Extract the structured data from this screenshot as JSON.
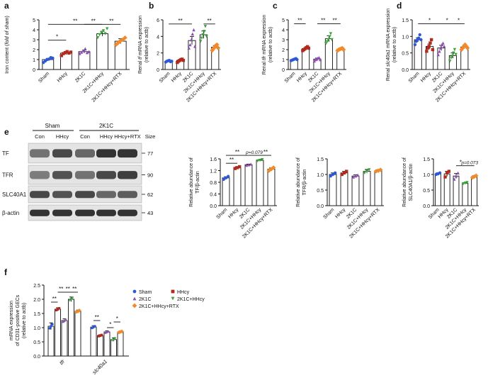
{
  "colors": {
    "Sham": "#2d59d6",
    "HHcy": "#b02a1e",
    "2K1C": "#8a4fb0",
    "2K1C+HHcy": "#3aa33a",
    "2K1C+HHcy+RTX": "#f08a2a"
  },
  "groups": [
    "Sham",
    "HHcy",
    "2K1C",
    "2K1C+HHcy",
    "2K1C+HHcy+RTX"
  ],
  "blot": {
    "panel_label": "e",
    "header_sham": "Sham",
    "header_2k1c": "2K1C",
    "lanes": [
      "Con",
      "HHcy",
      "Con",
      "HHcy",
      "HHcy+RTX"
    ],
    "size_label": "Size",
    "rows": [
      {
        "name": "TF",
        "size": "77"
      },
      {
        "name": "TFR",
        "size": "90"
      },
      {
        "name": "SLC40A1",
        "size": "62"
      },
      {
        "name": "β-actin",
        "size": "43"
      }
    ]
  },
  "legend": {
    "Sham": "Sham",
    "HHcy": "HHcy",
    "2K1C": "2K1C",
    "2K1C+HHcy": "2K1C+HHcy",
    "2K1C+HHcy+RTX": "2K1C+HHcy+RTX"
  },
  "chart_data": [
    {
      "panel": "a",
      "type": "bar",
      "ylabel_parts": [
        "Iron content (",
        "fold of sham",
        ")"
      ],
      "ylim": [
        0,
        5
      ],
      "yticks": [
        "0",
        "1",
        "2",
        "3",
        "4",
        "5"
      ],
      "categories": [
        "Sham",
        "HHcy",
        "2K1C",
        "2K1C+HHcy",
        "2K1C+HHcy+RTX"
      ],
      "values": [
        1.0,
        1.65,
        1.8,
        3.6,
        2.85
      ],
      "errors": [
        0.12,
        0.15,
        0.15,
        0.25,
        0.25
      ],
      "points": [
        [
          0.7,
          0.85,
          1.0,
          1.05,
          1.2,
          1.15
        ],
        [
          1.4,
          1.6,
          1.7,
          1.8,
          1.65,
          1.75
        ],
        [
          1.6,
          1.75,
          1.9,
          2.1,
          1.7,
          1.8
        ],
        [
          3.2,
          3.5,
          3.7,
          3.9,
          3.6,
          4.1
        ],
        [
          2.5,
          2.7,
          2.9,
          3.0,
          3.2
        ]
      ],
      "sig": [
        {
          "from": 0,
          "to": 1,
          "label": "*",
          "y": 2.95
        },
        {
          "from": 0,
          "to": 3,
          "label": "**",
          "y": 4.55
        },
        {
          "from": 2,
          "to": 3,
          "label": "**",
          "y": 4.55
        },
        {
          "from": 3,
          "to": 4,
          "label": "**",
          "y": 4.55
        }
      ]
    },
    {
      "panel": "b",
      "type": "bar",
      "ylabel_parts": [
        "Renal ",
        "tf",
        " mRNA expression"
      ],
      "ylabel2": "(relative to actb)",
      "ylim": [
        0,
        6
      ],
      "yticks": [
        "0",
        "2",
        "4",
        "6"
      ],
      "categories": [
        "Sham",
        "HHcy",
        "2K1C",
        "2K1C+HHcy",
        "2K1C+HHcy+RTX"
      ],
      "values": [
        1.0,
        1.1,
        3.5,
        4.2,
        2.7
      ],
      "errors": [
        0.1,
        0.12,
        0.5,
        0.45,
        0.2
      ],
      "points": [
        [
          0.9,
          1.0,
          1.05,
          1.1,
          0.95,
          1.0
        ],
        [
          0.85,
          1.0,
          1.1,
          1.2,
          1.25,
          1.1
        ],
        [
          2.6,
          3.0,
          3.6,
          4.3,
          4.8,
          2.8
        ],
        [
          3.4,
          3.8,
          4.2,
          4.6,
          5.2,
          4.0
        ],
        [
          2.3,
          2.5,
          2.7,
          2.9,
          3.0,
          2.6
        ]
      ],
      "sig": [
        {
          "from": 0,
          "to": 2,
          "label": "**",
          "y": 5.5
        },
        {
          "from": 3,
          "to": 4,
          "label": "**",
          "y": 5.5
        }
      ]
    },
    {
      "panel": "c",
      "type": "bar",
      "ylabel_parts": [
        "Renal ",
        "tfr",
        " mRNA expression"
      ],
      "ylabel2": "(relative to actb)",
      "ylim": [
        0,
        5
      ],
      "yticks": [
        "0",
        "1",
        "2",
        "3",
        "4",
        "5"
      ],
      "categories": [
        "Sham",
        "HHcy",
        "2K1C",
        "2K1C+HHcy",
        "2K1C+HHcy+RTX"
      ],
      "values": [
        1.0,
        2.1,
        1.05,
        3.1,
        2.05
      ],
      "errors": [
        0.08,
        0.12,
        0.1,
        0.3,
        0.1
      ],
      "points": [
        [
          0.9,
          0.95,
          1.0,
          1.05,
          1.1,
          1.0
        ],
        [
          1.9,
          2.0,
          2.1,
          2.2,
          2.3,
          2.15
        ],
        [
          0.85,
          1.0,
          1.05,
          1.15,
          1.2,
          1.0
        ],
        [
          2.6,
          2.8,
          3.0,
          3.3,
          3.6,
          3.0
        ],
        [
          1.9,
          2.0,
          2.05,
          2.1,
          2.15,
          2.0
        ]
      ],
      "sig": [
        {
          "from": 0,
          "to": 1,
          "label": "**",
          "y": 4.6
        },
        {
          "from": 2,
          "to": 3,
          "label": "**",
          "y": 4.6
        },
        {
          "from": 3,
          "to": 4,
          "label": "**",
          "y": 4.6
        }
      ]
    },
    {
      "panel": "d",
      "type": "bar",
      "ylabel_parts": [
        "Renal ",
        "slc40a1",
        " mRNA expression"
      ],
      "ylabel2": "(relative to actb)",
      "ylim": [
        0,
        1.5
      ],
      "yticks": [
        "0.0",
        "0.5",
        "1.0",
        "1.5"
      ],
      "categories": [
        "Sham",
        "HHcy",
        "2K1C",
        "2K1C+HHcy",
        "2K1C+HHcy+RTX"
      ],
      "values": [
        0.9,
        0.7,
        0.65,
        0.42,
        0.68
      ],
      "errors": [
        0.06,
        0.07,
        0.08,
        0.08,
        0.05
      ],
      "points": [
        [
          0.75,
          0.85,
          0.9,
          0.95,
          1.05,
          0.9
        ],
        [
          0.55,
          0.65,
          0.7,
          0.8,
          0.9,
          0.6
        ],
        [
          0.45,
          0.55,
          0.65,
          0.75,
          0.8,
          0.7
        ],
        [
          0.25,
          0.35,
          0.4,
          0.5,
          0.6,
          0.45
        ],
        [
          0.6,
          0.65,
          0.7,
          0.75,
          0.7,
          0.65
        ]
      ],
      "sig": [
        {
          "from": 0,
          "to": 2,
          "label": "*",
          "y": 1.38
        },
        {
          "from": 2,
          "to": 3,
          "label": "*",
          "y": 1.38
        },
        {
          "from": 3,
          "to": 4,
          "label": "*",
          "y": 1.38
        }
      ]
    },
    {
      "panel": "e1",
      "type": "bar",
      "ylabel_parts": [
        "Relative abundance of"
      ],
      "ylabel2": "TF/β-actin",
      "ylim": [
        0,
        1.6
      ],
      "yticks": [
        "0.0",
        "0.4",
        "0.8",
        "1.2",
        "1.6"
      ],
      "categories": [
        "Sham",
        "HHcy",
        "2K1C",
        "2K1C+HHcy",
        "2K1C+HHcy+RTX"
      ],
      "values": [
        0.95,
        1.3,
        1.4,
        1.55,
        1.25
      ],
      "errors": [
        0.04,
        0.03,
        0.02,
        0.02,
        0.04
      ],
      "points": [
        [
          0.9,
          0.95,
          1.0
        ],
        [
          1.27,
          1.3,
          1.33
        ],
        [
          1.38,
          1.4,
          1.42
        ],
        [
          1.53,
          1.55,
          1.57
        ],
        [
          1.2,
          1.25,
          1.3
        ]
      ],
      "sig": [
        {
          "from": 0,
          "to": 1,
          "label": "**",
          "y": 1.45
        },
        {
          "from": 0,
          "to": 2,
          "label": "**",
          "y": 1.72
        },
        {
          "from": 2,
          "to": 3,
          "label": "p=0.079",
          "y": 1.72
        },
        {
          "from": 3,
          "to": 4,
          "label": "**",
          "y": 1.72
        }
      ]
    },
    {
      "panel": "e2",
      "type": "bar",
      "ylabel_parts": [
        "Relative abundance of"
      ],
      "ylabel2": "TFR/β-actin",
      "ylim": [
        0,
        1.5
      ],
      "yticks": [
        "0.0",
        "0.5",
        "1.0",
        "1.5"
      ],
      "categories": [
        "Sham",
        "HHcy",
        "2K1C",
        "2K1C+HHcy",
        "2K1C+HHcy+RTX"
      ],
      "values": [
        1.0,
        1.05,
        0.95,
        1.1,
        1.12
      ],
      "errors": [
        0.05,
        0.05,
        0.04,
        0.06,
        0.03
      ],
      "points": [
        [
          0.95,
          1.0,
          1.05
        ],
        [
          1.0,
          1.05,
          1.1
        ],
        [
          0.92,
          0.95,
          0.98
        ],
        [
          1.05,
          1.1,
          1.15
        ],
        [
          1.1,
          1.12,
          1.15
        ]
      ],
      "sig": []
    },
    {
      "panel": "e3",
      "type": "bar",
      "ylabel_parts": [
        "Relative abundance of"
      ],
      "ylabel2": "SLC40A1/β-actin",
      "ylim": [
        0,
        1.5
      ],
      "yticks": [
        "0.0",
        "0.5",
        "1.0",
        "1.5"
      ],
      "categories": [
        "Sham",
        "HHcy",
        "2K1C",
        "2K1C+HHcy",
        "2K1C+HHcy+RTX"
      ],
      "values": [
        1.02,
        1.02,
        0.95,
        0.72,
        0.93
      ],
      "errors": [
        0.03,
        0.08,
        0.08,
        0.02,
        0.03
      ],
      "points": [
        [
          1.0,
          1.02,
          1.05
        ],
        [
          0.92,
          1.05,
          1.1
        ],
        [
          0.85,
          0.95,
          1.05
        ],
        [
          0.7,
          0.72,
          0.74
        ],
        [
          0.9,
          0.93,
          0.96
        ]
      ],
      "sig": [
        {
          "from": 2,
          "to": 3,
          "label": "*",
          "y": 1.28
        },
        {
          "from": 3,
          "to": 4,
          "label": "p=0.073",
          "y": 1.28
        }
      ]
    },
    {
      "panel": "f",
      "type": "bar",
      "ylabel_parts": [
        "mRNA expression"
      ],
      "ylabel_lines": [
        "mRNA expression",
        "of CD31-positive GECs",
        "(relative to actb)"
      ],
      "ylim": [
        0,
        2.5
      ],
      "yticks": [
        "0.0",
        "0.5",
        "1.0",
        "1.5",
        "2.0",
        "2.5"
      ],
      "categories": [
        "tfr",
        "slc40a1"
      ],
      "series": [
        {
          "name": "Sham",
          "values": [
            1.05,
            1.02
          ]
        },
        {
          "name": "HHcy",
          "values": [
            1.65,
            0.72
          ]
        },
        {
          "name": "2K1C",
          "values": [
            1.25,
            0.85
          ]
        },
        {
          "name": "2K1C+HHcy",
          "values": [
            2.0,
            0.58
          ]
        },
        {
          "name": "2K1C+HHcy+RTX",
          "values": [
            1.58,
            0.85
          ]
        }
      ],
      "errors": [
        [
          0.12,
          0.05,
          0.06,
          0.08,
          0.04
        ],
        [
          0.05,
          0.03,
          0.04,
          0.06,
          0.03
        ]
      ],
      "sig": [
        {
          "group": 0,
          "from": 0,
          "to": 1,
          "label": "**",
          "y": 1.9
        },
        {
          "group": 0,
          "from": 1,
          "to": 2,
          "label": "**",
          "y": 2.25
        },
        {
          "group": 0,
          "from": 2,
          "to": 3,
          "label": "**",
          "y": 2.25
        },
        {
          "group": 0,
          "from": 3,
          "to": 4,
          "label": "**",
          "y": 2.25
        },
        {
          "group": 1,
          "from": 0,
          "to": 1,
          "label": "**",
          "y": 1.25
        },
        {
          "group": 1,
          "from": 2,
          "to": 3,
          "label": "*",
          "y": 1.0
        },
        {
          "group": 1,
          "from": 3,
          "to": 4,
          "label": "*",
          "y": 1.2
        }
      ]
    }
  ]
}
